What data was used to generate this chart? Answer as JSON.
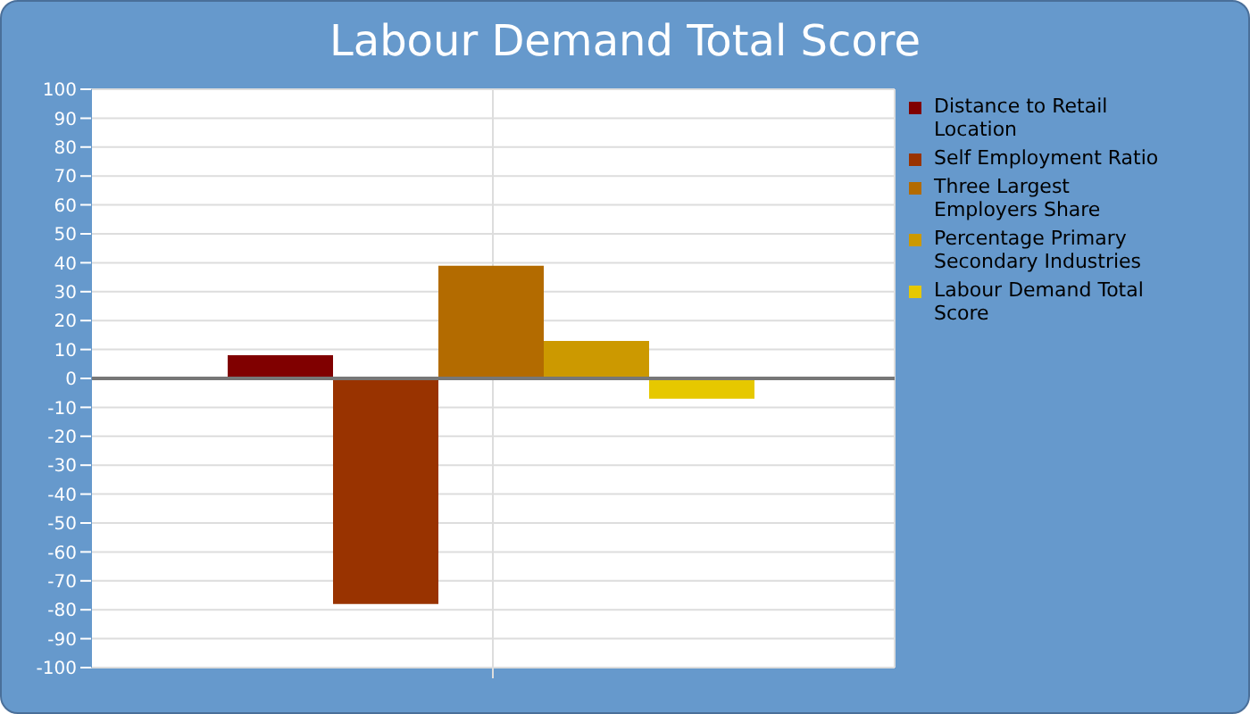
{
  "chart_data": {
    "type": "bar",
    "title": "Labour Demand Total Score",
    "categories": [
      null
    ],
    "series": [
      {
        "name": "Distance to Retail Location",
        "color": "#800000",
        "values": [
          8
        ]
      },
      {
        "name": "Self Employment Ratio",
        "color": "#993300",
        "values": [
          -78
        ]
      },
      {
        "name": "Three Largest Employers Share",
        "color": "#b36b00",
        "values": [
          39
        ]
      },
      {
        "name": "Percentage Primary Secondary Industries",
        "color": "#cc9900",
        "values": [
          13
        ]
      },
      {
        "name": "Labour Demand Total Score",
        "color": "#e6c800",
        "values": [
          -7
        ]
      }
    ],
    "ylim": [
      -100,
      100
    ],
    "yticks": [
      -100,
      -90,
      -80,
      -70,
      -60,
      -50,
      -40,
      -30,
      -20,
      -10,
      0,
      10,
      20,
      30,
      40,
      50,
      60,
      70,
      80,
      90,
      100
    ],
    "grid": true,
    "legend": "right"
  }
}
